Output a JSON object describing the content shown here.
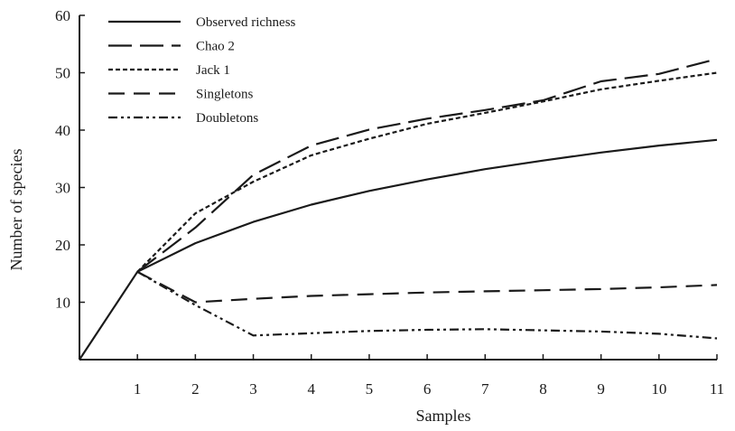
{
  "chart_data": {
    "type": "line",
    "title": "",
    "xlabel": "Samples",
    "ylabel": "Number of species",
    "x": [
      0,
      1,
      2,
      3,
      4,
      5,
      6,
      7,
      8,
      9,
      10,
      11
    ],
    "xticks": [
      1,
      2,
      3,
      4,
      5,
      6,
      7,
      8,
      9,
      10,
      11
    ],
    "yticks": [
      10,
      20,
      30,
      40,
      50,
      60
    ],
    "xlim": [
      0,
      11
    ],
    "ylim": [
      0,
      60
    ],
    "grid": false,
    "legend_position": "top-left",
    "series": [
      {
        "name": "Observed richness",
        "style": "solid",
        "x": [
          0,
          1,
          2,
          3,
          4,
          5,
          6,
          7,
          8,
          9,
          10,
          11
        ],
        "y": [
          0,
          15.3,
          20.3,
          24,
          27,
          29.4,
          31.4,
          33.2,
          34.7,
          36.1,
          37.3,
          38.3
        ]
      },
      {
        "name": "Chao 2",
        "style": "long-dash",
        "x": [
          1,
          2,
          3,
          4,
          5,
          6,
          7,
          8,
          9,
          10,
          11
        ],
        "y": [
          15.3,
          23,
          32.2,
          37.3,
          40.1,
          42,
          43.5,
          45.2,
          48.5,
          49.8,
          52.4
        ]
      },
      {
        "name": "Jack 1",
        "style": "short-dash",
        "x": [
          1,
          2,
          3,
          4,
          5,
          6,
          7,
          8,
          9,
          10,
          11
        ],
        "y": [
          15.3,
          25.5,
          31,
          35.6,
          38.5,
          41.1,
          43,
          45,
          47.1,
          48.6,
          50
        ]
      },
      {
        "name": "Singletons",
        "style": "dash",
        "x": [
          1,
          2,
          3,
          4,
          5,
          6,
          7,
          8,
          9,
          10,
          11
        ],
        "y": [
          15.3,
          10,
          10.6,
          11.1,
          11.4,
          11.7,
          11.9,
          12.1,
          12.3,
          12.6,
          13
        ]
      },
      {
        "name": "Doubletons",
        "style": "dash-dot-dot",
        "x": [
          1,
          2,
          3,
          4,
          5,
          6,
          7,
          8,
          9,
          10,
          11
        ],
        "y": [
          15.3,
          9.5,
          4.2,
          4.6,
          5,
          5.2,
          5.3,
          5.1,
          4.9,
          4.5,
          3.7
        ]
      }
    ]
  }
}
